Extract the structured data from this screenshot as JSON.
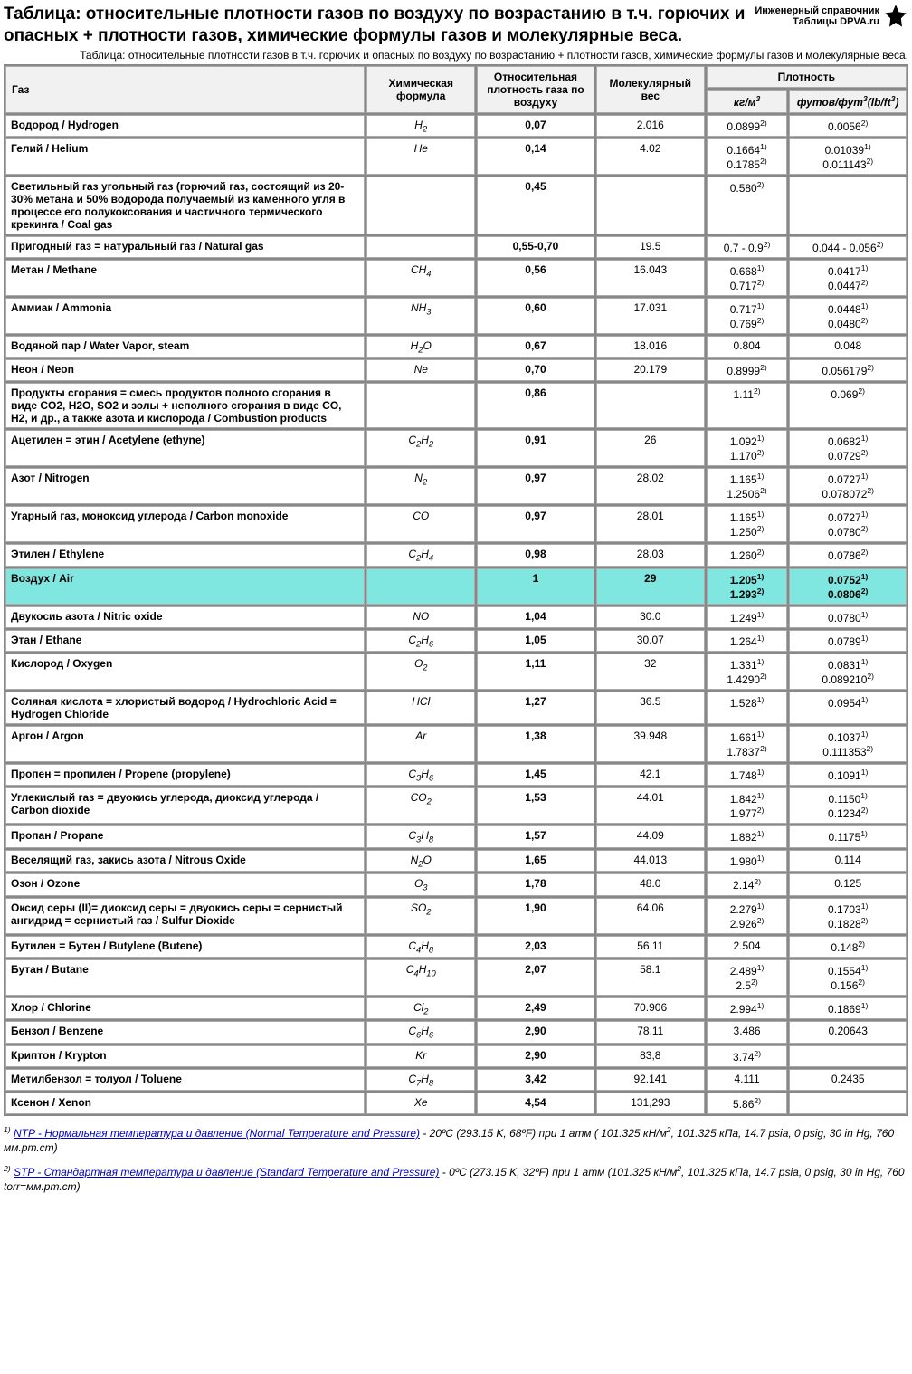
{
  "header": {
    "title": "Таблица: относительные плотности газов по воздуху по возрастанию в т.ч. горючих и опасных + плотности газов, химические формулы газов и молекулярные веса.",
    "brand": "Инженерный справочник\nТаблицы DPVA.ru",
    "subtitle": "Таблица: относительные плотности газов в т.ч. горючих и опасных по воздуху по возрастанию + плотности газов, химические формулы газов и молекулярные веса."
  },
  "columns": {
    "gas": "Газ",
    "formula": "Химическая формула",
    "rel_density": "Относительная плотность газа по воздуху",
    "mol_weight": "Молекулярный вес",
    "density": "Плотность",
    "d_kgm3": "кг/м<sup>3</sup>",
    "d_lbft3": "футов/фут<sup>3</sup>(lb/ft<sup>3</sup>)"
  },
  "rows": [
    {
      "gas": "Водород / Hydrogen",
      "f": "H<sub>2</sub>",
      "rd": "0,07",
      "mw": "2.016",
      "d1": "0.0899<sup>2)</sup>",
      "d2": "0.0056<sup>2)</sup>"
    },
    {
      "gas": "Гелий / Helium",
      "f": "He",
      "rd": "0,14",
      "mw": "4.02",
      "d1": "0.1664<sup>1)</sup><br>0.1785<sup>2)</sup>",
      "d2": "0.01039<sup>1)</sup><br>0.011143<sup>2)</sup>"
    },
    {
      "gas": "Светильный газ угольный газ (горючий газ, состоящий из 20-30% метана и 50% водорода получаемый из каменного угля в процессе его полукоксования и частичного термического крекинга / Coal gas",
      "f": "",
      "rd": "0,45",
      "mw": "",
      "d1": "0.580<sup>2)</sup>",
      "d2": ""
    },
    {
      "gas": "Пригодный газ = натуральный газ / Natural gas",
      "f": "",
      "rd": "0,55-0,70",
      "mw": "19.5",
      "d1": "0.7 - 0.9<sup>2)</sup>",
      "d2": "0.044 - 0.056<sup>2)</sup>"
    },
    {
      "gas": "Метан / Methane",
      "f": "CH<sub>4</sub>",
      "rd": "0,56",
      "mw": "16.043",
      "d1": "0.668<sup>1)</sup><br>0.717<sup>2)</sup>",
      "d2": "0.0417<sup>1)</sup><br>0.0447<sup>2)</sup>"
    },
    {
      "gas": "Аммиак / Ammonia",
      "f": "NH<sub>3</sub>",
      "rd": "0,60",
      "mw": "17.031",
      "d1": "0.717<sup>1)</sup><br>0.769<sup>2)</sup>",
      "d2": "0.0448<sup>1)</sup><br>0.0480<sup>2)</sup>"
    },
    {
      "gas": "Водяной пар / Water Vapor, steam",
      "f": "H<sub>2</sub>O",
      "rd": "0,67",
      "mw": "18.016",
      "d1": "0.804",
      "d2": "0.048"
    },
    {
      "gas": "Неон / Neon",
      "f": "Ne",
      "rd": "0,70",
      "mw": "20.179",
      "d1": "0.8999<sup>2)</sup>",
      "d2": "0.056179<sup>2)</sup>"
    },
    {
      "gas": "Продукты сгорания = смесь продуктов полного сгорания в виде CO2, H2O, SO2 и золы + неполного сгорания в виде CO, H2, и др., а также азота и кислорода / Combustion products",
      "f": "",
      "rd": "0,86",
      "mw": "",
      "d1": "1.11<sup>2)</sup>",
      "d2": "0.069<sup>2)</sup>"
    },
    {
      "gas": "Ацетилен = этин / Acetylene (ethyne)",
      "f": "C<sub>2</sub>H<sub>2</sub>",
      "rd": "0,91",
      "mw": "26",
      "d1": "1.092<sup>1)</sup><br>1.170<sup>2)</sup>",
      "d2": "0.0682<sup>1)</sup><br>0.0729<sup>2)</sup>"
    },
    {
      "gas": "Азот / Nitrogen",
      "f": "N<sub>2</sub>",
      "rd": "0,97",
      "mw": "28.02",
      "d1": "1.165<sup>1)</sup><br>1.2506<sup>2)</sup>",
      "d2": "0.0727<sup>1)</sup><br>0.078072<sup>2)</sup>"
    },
    {
      "gas": "Угарный газ, моноксид углерода / Carbon monoxide",
      "f": "CO",
      "rd": "0,97",
      "mw": "28.01",
      "d1": "1.165<sup>1)</sup><br>1.250<sup>2)</sup>",
      "d2": "0.0727<sup>1)</sup><br>0.0780<sup>2)</sup>"
    },
    {
      "gas": "Этилен / Ethylene",
      "f": "C<sub>2</sub>H<sub>4</sub>",
      "rd": "0,98",
      "mw": "28.03",
      "d1": "1.260<sup>2)</sup>",
      "d2": "0.0786<sup>2)</sup>"
    },
    {
      "gas": "Воздух / Air",
      "f": "",
      "rd": "1",
      "mw": "29",
      "d1": "1.205<sup>1)</sup><br>1.293<sup>2)</sup>",
      "d2": "0.0752<sup>1)</sup><br>0.0806<sup>2)</sup>",
      "hl": true
    },
    {
      "gas": "Двукосиь азота / Nitric oxide",
      "f": "NO",
      "rd": "1,04",
      "mw": "30.0",
      "d1": "1.249<sup>1)</sup>",
      "d2": "0.0780<sup>1)</sup>"
    },
    {
      "gas": "Этан / Ethane",
      "f": "C<sub>2</sub>H<sub>6</sub>",
      "rd": "1,05",
      "mw": "30.07",
      "d1": "1.264<sup>1)</sup>",
      "d2": "0.0789<sup>1)</sup>"
    },
    {
      "gas": "Кислород / Oxygen",
      "f": "O<sub>2</sub>",
      "rd": "1,11",
      "mw": "32",
      "d1": "1.331<sup>1)</sup><br>1.4290<sup>2)</sup>",
      "d2": "0.0831<sup>1)</sup><br>0.089210<sup>2)</sup>"
    },
    {
      "gas": "Соляная кислота = хлористый водород / Hydrochloric Acid = Hydrogen Chloride",
      "f": "HCl",
      "rd": "1,27",
      "mw": "36.5",
      "d1": "1.528<sup>1)</sup>",
      "d2": "0.0954<sup>1)</sup>"
    },
    {
      "gas": "Аргон / Argon",
      "f": "Ar",
      "rd": "1,38",
      "mw": "39.948",
      "d1": "1.661<sup>1)</sup><br>1.7837<sup>2)</sup>",
      "d2": "0.1037<sup>1)</sup><br>0.111353<sup>2)</sup>"
    },
    {
      "gas": "Пропен = пропилен / Propene (propylene)",
      "f": "C<sub>3</sub>H<sub>6</sub>",
      "rd": "1,45",
      "mw": "42.1",
      "d1": "1.748<sup>1)</sup>",
      "d2": "0.1091<sup>1)</sup>"
    },
    {
      "gas": "Углекислый газ = двуокись углерода, диоксид углерода / Carbon dioxide",
      "f": "CO<sub>2</sub>",
      "rd": "1,53",
      "mw": "44.01",
      "d1": "1.842<sup>1)</sup><br>1.977<sup>2)</sup>",
      "d2": "0.1150<sup>1)</sup><br>0.1234<sup>2)</sup>"
    },
    {
      "gas": "Пропан / Propane",
      "f": "C<sub>3</sub>H<sub>8</sub>",
      "rd": "1,57",
      "mw": "44.09",
      "d1": "1.882<sup>1)</sup>",
      "d2": "0.1175<sup>1)</sup>"
    },
    {
      "gas": "Веселящий газ, закись азота / Nitrous Oxide",
      "f": "N<sub>2</sub>O",
      "rd": "1,65",
      "mw": "44.013",
      "d1": "1.980<sup>1)</sup>",
      "d2": "0.114"
    },
    {
      "gas": "Озон / Ozone",
      "f": "O<sub>3</sub>",
      "rd": "1,78",
      "mw": "48.0",
      "d1": "2.14<sup>2)</sup>",
      "d2": "0.125"
    },
    {
      "gas": "Оксид серы (II)= диоксид серы = двуокись серы = сернистый ангидрид = сернистый газ / Sulfur Dioxide",
      "f": "SO<sub>2</sub>",
      "rd": "1,90",
      "mw": "64.06",
      "d1": "2.279<sup>1)</sup><br>2.926<sup>2)</sup>",
      "d2": "0.1703<sup>1)</sup><br>0.1828<sup>2)</sup>"
    },
    {
      "gas": "Бутилен = Бутен / Butylene (Butene)",
      "f": "C<sub>4</sub>H<sub>8</sub>",
      "rd": "2,03",
      "mw": "56.11",
      "d1": "2.504",
      "d2": "0.148<sup>2)</sup>"
    },
    {
      "gas": "Бутан / Butane",
      "f": "C<sub>4</sub>H<sub>10</sub>",
      "rd": "2,07",
      "mw": "58.1",
      "d1": "2.489<sup>1)</sup><br>2.5<sup>2)</sup>",
      "d2": "0.1554<sup>1)</sup><br>0.156<sup>2)</sup>"
    },
    {
      "gas": "Хлор / Chlorine",
      "f": "Cl<sub>2</sub>",
      "rd": "2,49",
      "mw": "70.906",
      "d1": "2.994<sup>1)</sup>",
      "d2": "0.1869<sup>1)</sup>"
    },
    {
      "gas": "Бензол / Benzene",
      "f": "C<sub>6</sub>H<sub>6</sub>",
      "rd": "2,90",
      "mw": "78.11",
      "d1": "3.486",
      "d2": "0.20643"
    },
    {
      "gas": "Криптон / Krypton",
      "f": "Kr",
      "rd": "2,90",
      "mw": "83,8",
      "d1": "3.74<sup>2)</sup>",
      "d2": ""
    },
    {
      "gas": "Метилбензол = толуол / Toluene",
      "f": "C<sub>7</sub>H<sub>8</sub>",
      "rd": "3,42",
      "mw": "92.141",
      "d1": "4.111",
      "d2": "0.2435"
    },
    {
      "gas": "Ксенон / Xenon",
      "f": "Xe",
      "rd": "4,54",
      "mw": "131,293",
      "d1": "5.86<sup>2)</sup>",
      "d2": ""
    }
  ],
  "footnotes": {
    "n1_link": "NTP - Нормальная температура и давление (Normal Temperature and Pressure)",
    "n1_rest": " - 20ºC (293.15 K, 68ºF) при 1 атм ( 101.325 кН/м<sup>2</sup>, 101.325 кПа, 14.7 psia, 0 psig, 30 in Hg, 760 мм.рт.ст)",
    "n2_link": "STP - Стандартная температура и давление (Standard Temperature and Pressure)",
    "n2_rest": " - 0ºC (273.15 K, 32ºF) при 1 атм (101.325 кН/м<sup>2</sup>, 101.325 кПа, 14.7 psia, 0 psig, 30 in Hg, 760 torr=мм.рт.ст)"
  }
}
